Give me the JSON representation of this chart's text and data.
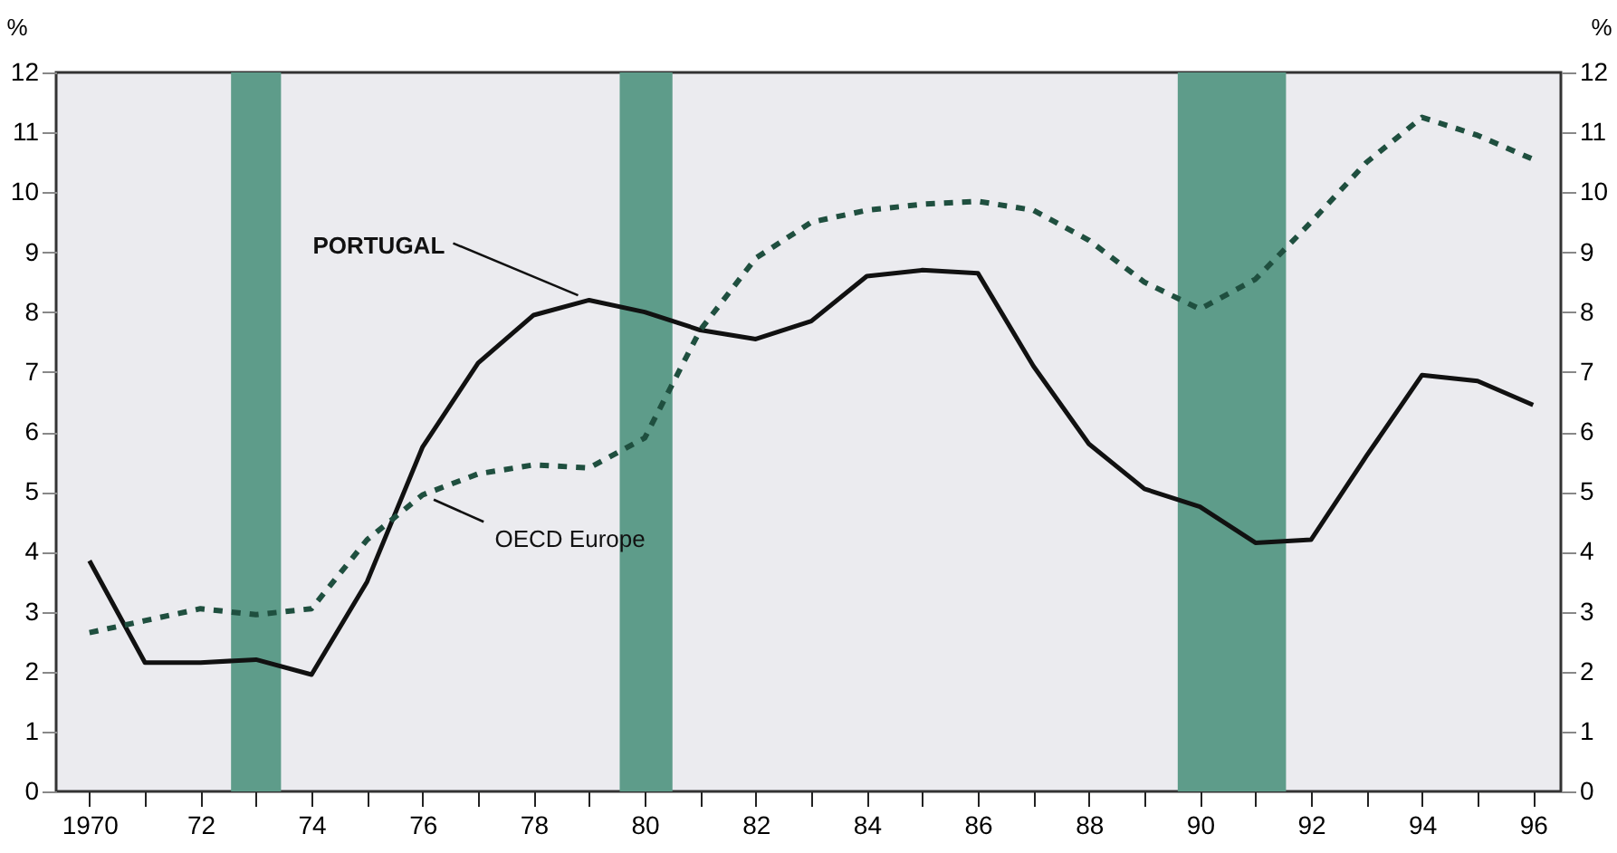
{
  "chart_data": {
    "type": "line",
    "x": [
      1970,
      1971,
      1972,
      1973,
      1974,
      1975,
      1976,
      1977,
      1978,
      1979,
      1980,
      1981,
      1982,
      1983,
      1984,
      1985,
      1986,
      1987,
      1988,
      1989,
      1990,
      1991,
      1992,
      1993,
      1994,
      1995,
      1996
    ],
    "series": [
      {
        "name": "PORTUGAL",
        "color": "#111111",
        "line_style": "solid",
        "values": [
          3.85,
          2.15,
          2.15,
          2.2,
          1.95,
          3.5,
          5.75,
          7.15,
          7.95,
          8.2,
          8.0,
          7.7,
          7.55,
          7.85,
          8.6,
          8.7,
          8.65,
          7.1,
          5.8,
          5.05,
          4.75,
          4.15,
          4.2,
          5.6,
          6.95,
          6.85,
          6.45
        ]
      },
      {
        "name": "OECD Europe",
        "color": "#1f4f3f",
        "line_style": "dashed",
        "values": [
          2.65,
          2.85,
          3.05,
          2.95,
          3.05,
          4.2,
          4.95,
          5.3,
          5.45,
          5.4,
          5.9,
          7.7,
          8.9,
          9.5,
          9.7,
          9.8,
          9.85,
          9.7,
          9.2,
          8.5,
          8.05,
          8.55,
          9.5,
          10.5,
          11.25,
          10.95,
          10.55
        ]
      }
    ],
    "ylabel": "%",
    "y2label": "%",
    "xlim": [
      1969.4,
      1996.5
    ],
    "ylim": [
      0,
      12
    ],
    "y2lim": [
      0,
      12
    ],
    "yticks": [
      0,
      1,
      2,
      3,
      4,
      5,
      6,
      7,
      8,
      9,
      10,
      11,
      12
    ],
    "y2ticks": [
      0,
      1,
      2,
      3,
      4,
      5,
      6,
      7,
      8,
      9,
      10,
      11,
      12
    ],
    "xticks": [
      {
        "value": 1970,
        "label": "1970"
      },
      {
        "value": 1971,
        "label": null
      },
      {
        "value": 1972,
        "label": "72"
      },
      {
        "value": 1973,
        "label": null
      },
      {
        "value": 1974,
        "label": "74"
      },
      {
        "value": 1975,
        "label": null
      },
      {
        "value": 1976,
        "label": "76"
      },
      {
        "value": 1977,
        "label": null
      },
      {
        "value": 1978,
        "label": "78"
      },
      {
        "value": 1979,
        "label": null
      },
      {
        "value": 1980,
        "label": "80"
      },
      {
        "value": 1981,
        "label": null
      },
      {
        "value": 1982,
        "label": "82"
      },
      {
        "value": 1983,
        "label": null
      },
      {
        "value": 1984,
        "label": "84"
      },
      {
        "value": 1985,
        "label": null
      },
      {
        "value": 1986,
        "label": "86"
      },
      {
        "value": 1987,
        "label": null
      },
      {
        "value": 1988,
        "label": "88"
      },
      {
        "value": 1989,
        "label": null
      },
      {
        "value": 1990,
        "label": "90"
      },
      {
        "value": 1991,
        "label": null
      },
      {
        "value": 1992,
        "label": "92"
      },
      {
        "value": 1993,
        "label": null
      },
      {
        "value": 1994,
        "label": "94"
      },
      {
        "value": 1995,
        "label": null
      },
      {
        "value": 1996,
        "label": "96"
      }
    ],
    "bands": [
      {
        "axis": "x",
        "from": 1972.55,
        "to": 1973.45,
        "color": "#5e9c8a"
      },
      {
        "axis": "x",
        "from": 1979.55,
        "to": 1980.5,
        "color": "#5e9c8a"
      },
      {
        "axis": "x",
        "from": 1989.6,
        "to": 1991.55,
        "color": "#5e9c8a"
      }
    ],
    "grid": false,
    "legend": false,
    "marker": "none"
  }
}
